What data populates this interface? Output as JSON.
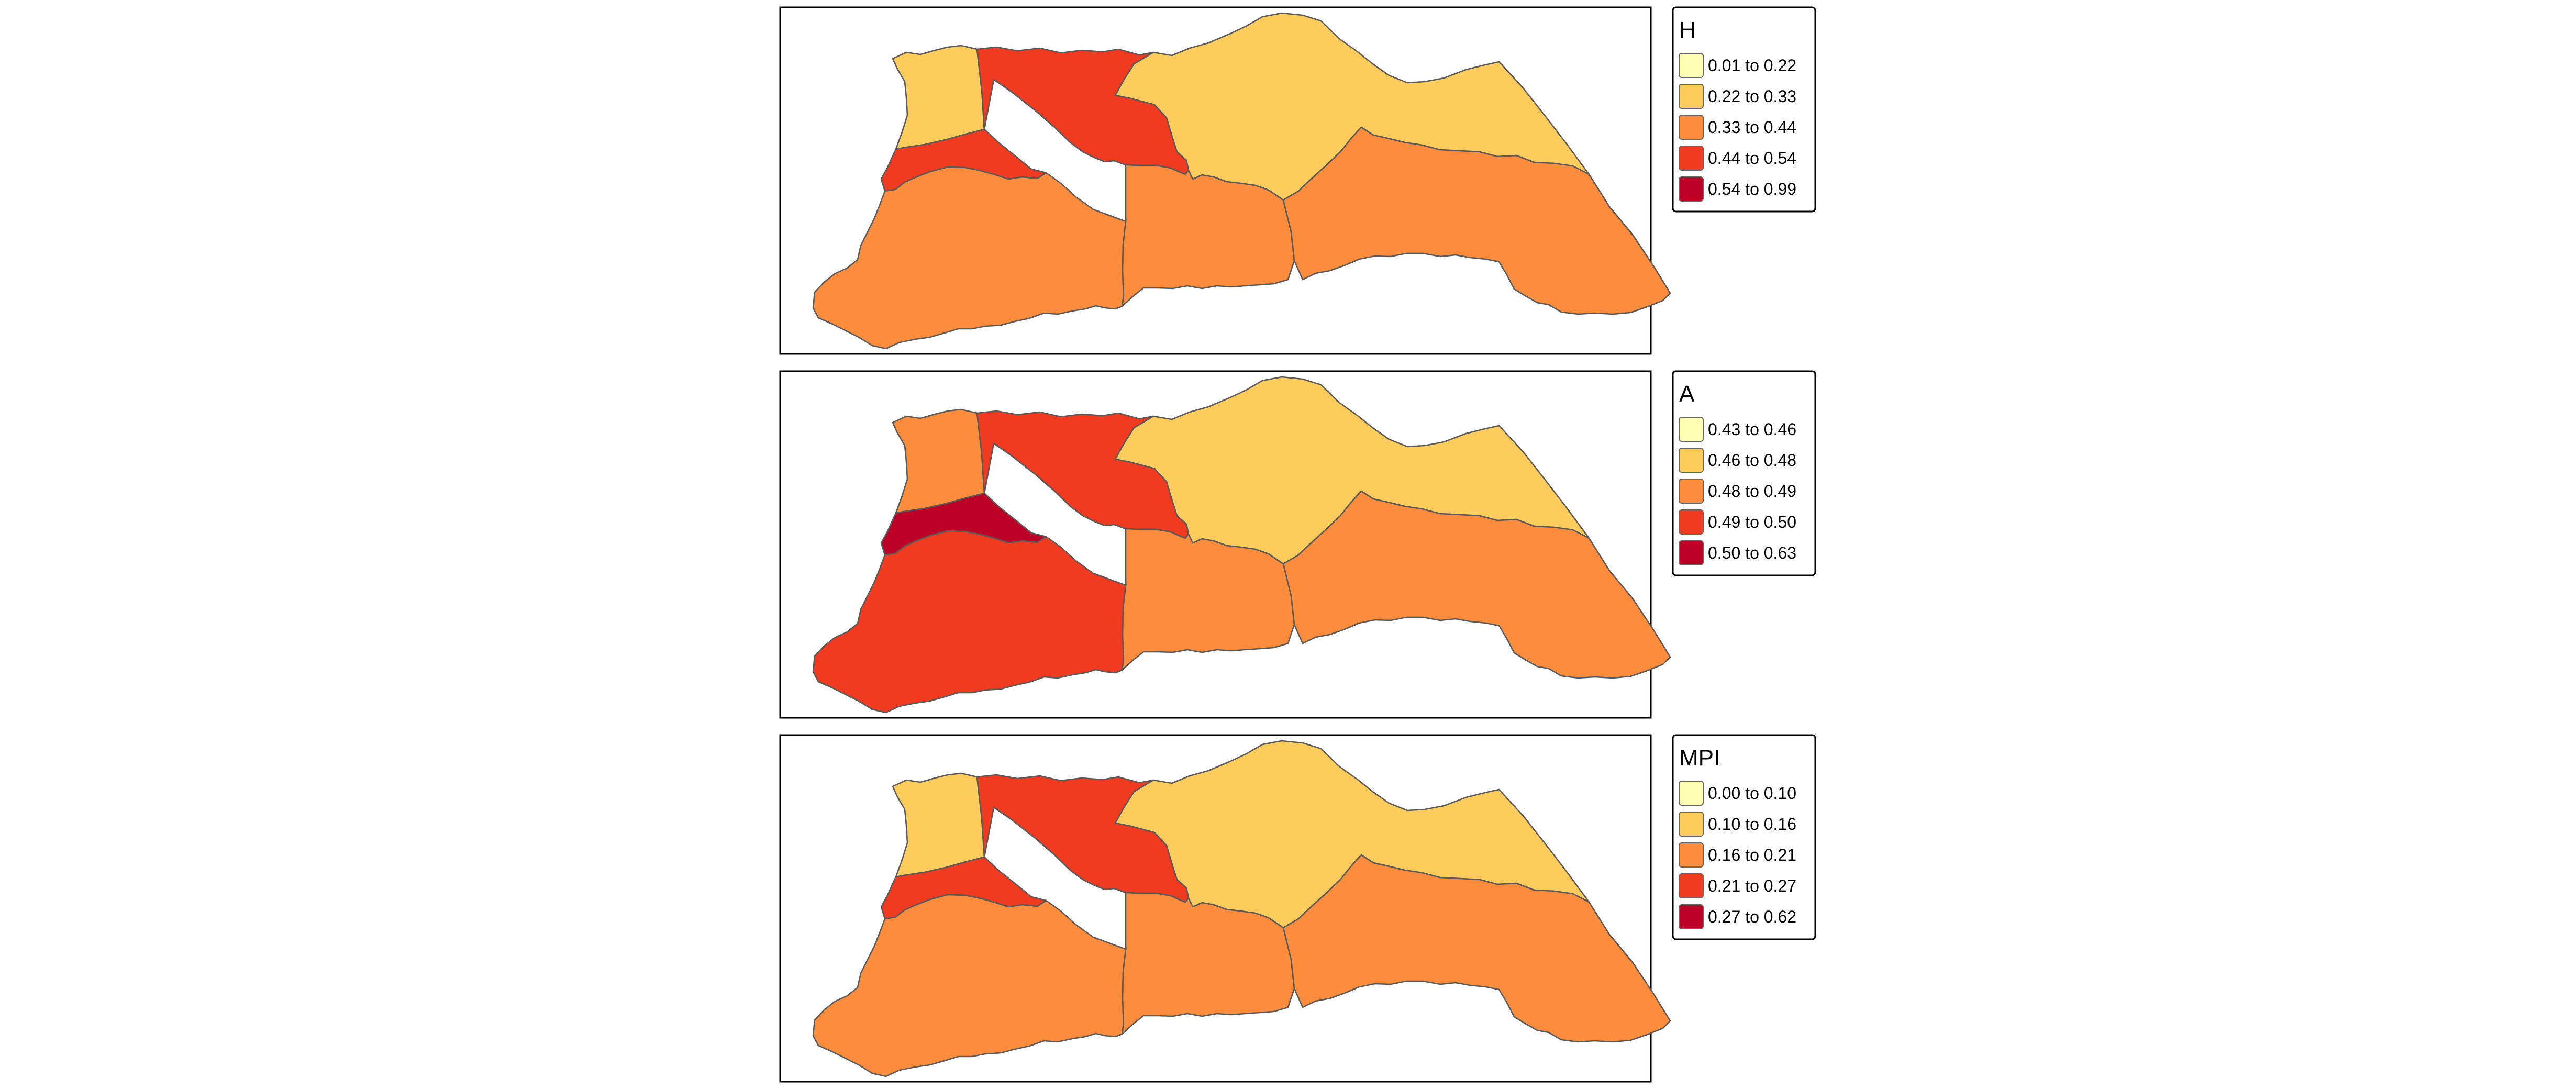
{
  "palette": {
    "c1": "#FFFFB2",
    "c2": "#FECC5C",
    "c3": "#FD8D3C",
    "c4": "#F03B20",
    "c5": "#BD0026"
  },
  "panels": [
    {
      "id": "H",
      "legend": {
        "title": "H",
        "items": [
          {
            "label": "0.01 to 0.22",
            "color": "#FFFFB2"
          },
          {
            "label": "0.22 to 0.33",
            "color": "#FECC5C"
          },
          {
            "label": "0.33 to 0.44",
            "color": "#FD8D3C"
          },
          {
            "label": "0.44 to 0.54",
            "color": "#F03B20"
          },
          {
            "label": "0.54 to 0.99",
            "color": "#BD0026"
          }
        ]
      },
      "region_classes": {
        "nw": 2,
        "north": 4,
        "west": 4,
        "southwest": 3,
        "center": 3,
        "northeast": 2,
        "southeast": 3
      }
    },
    {
      "id": "A",
      "legend": {
        "title": "A",
        "items": [
          {
            "label": "0.43 to 0.46",
            "color": "#FFFFB2"
          },
          {
            "label": "0.46 to 0.48",
            "color": "#FECC5C"
          },
          {
            "label": "0.48 to 0.49",
            "color": "#FD8D3C"
          },
          {
            "label": "0.49 to 0.50",
            "color": "#F03B20"
          },
          {
            "label": "0.50 to 0.63",
            "color": "#BD0026"
          }
        ]
      },
      "region_classes": {
        "nw": 3,
        "north": 4,
        "west": 5,
        "southwest": 4,
        "center": 3,
        "northeast": 2,
        "southeast": 3
      }
    },
    {
      "id": "MPI",
      "legend": {
        "title": "MPI",
        "items": [
          {
            "label": "0.00 to 0.10",
            "color": "#FFFFB2"
          },
          {
            "label": "0.10 to 0.16",
            "color": "#FECC5C"
          },
          {
            "label": "0.16 to 0.21",
            "color": "#FD8D3C"
          },
          {
            "label": "0.21 to 0.27",
            "color": "#F03B20"
          },
          {
            "label": "0.27 to 0.62",
            "color": "#BD0026"
          }
        ]
      },
      "region_classes": {
        "nw": 2,
        "north": 4,
        "west": 4,
        "southwest": 3,
        "center": 3,
        "northeast": 2,
        "southeast": 3
      }
    }
  ]
}
